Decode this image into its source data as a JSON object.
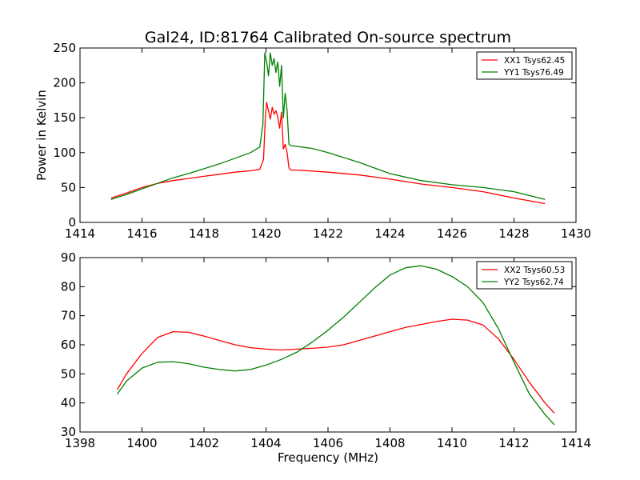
{
  "figure": {
    "title": "Gal24, ID:81764 Calibrated On-source spectrum",
    "xlabel": "Frequency (MHz)"
  },
  "chart_data": [
    {
      "type": "line",
      "title": "Gal24, ID:81764 Calibrated On-source spectrum",
      "xlabel": "",
      "ylabel": "Power in Kelvin",
      "xlim": [
        1414,
        1430
      ],
      "ylim": [
        0,
        250
      ],
      "xticks": [
        1414,
        1416,
        1418,
        1420,
        1422,
        1424,
        1426,
        1428,
        1430
      ],
      "yticks": [
        0,
        50,
        100,
        150,
        200,
        250
      ],
      "grid": false,
      "legend": "top-right",
      "series": [
        {
          "name": "XX1 Tsys62.45",
          "color": "#ff0000",
          "x": [
            1415.0,
            1415.5,
            1416.0,
            1416.5,
            1417.0,
            1417.5,
            1418.0,
            1418.5,
            1419.0,
            1419.5,
            1419.8,
            1419.92,
            1419.98,
            1420.02,
            1420.08,
            1420.14,
            1420.2,
            1420.26,
            1420.32,
            1420.38,
            1420.44,
            1420.5,
            1420.56,
            1420.62,
            1420.68,
            1420.74,
            1420.8,
            1421.0,
            1422.0,
            1423.0,
            1424.0,
            1425.0,
            1426.0,
            1427.0,
            1428.0,
            1429.0
          ],
          "y": [
            35,
            42,
            50,
            56,
            60,
            63,
            66,
            69,
            72,
            74,
            76,
            90,
            150,
            172,
            160,
            148,
            165,
            155,
            160,
            152,
            135,
            158,
            105,
            112,
            100,
            78,
            75,
            75,
            72,
            68,
            62,
            55,
            50,
            44,
            35,
            27
          ]
        },
        {
          "name": "YY1 Tsys76.49",
          "color": "#008000",
          "x": [
            1415.0,
            1415.5,
            1416.0,
            1416.5,
            1417.0,
            1417.5,
            1418.0,
            1418.5,
            1419.0,
            1419.5,
            1419.8,
            1419.9,
            1419.96,
            1420.02,
            1420.08,
            1420.14,
            1420.2,
            1420.26,
            1420.32,
            1420.38,
            1420.44,
            1420.5,
            1420.56,
            1420.62,
            1420.68,
            1420.74,
            1420.8,
            1421.0,
            1421.5,
            1422.0,
            1423.0,
            1424.0,
            1425.0,
            1426.0,
            1427.0,
            1428.0,
            1429.0
          ],
          "y": [
            33,
            40,
            48,
            56,
            64,
            70,
            77,
            84,
            92,
            100,
            108,
            140,
            243,
            230,
            210,
            243,
            225,
            235,
            215,
            230,
            195,
            225,
            150,
            185,
            160,
            112,
            110,
            109,
            106,
            100,
            86,
            70,
            60,
            54,
            50,
            44,
            33
          ]
        }
      ]
    },
    {
      "type": "line",
      "title": "",
      "xlabel": "Frequency (MHz)",
      "ylabel": "",
      "xlim": [
        1398,
        1414
      ],
      "ylim": [
        30,
        90
      ],
      "xticks": [
        1398,
        1400,
        1402,
        1404,
        1406,
        1408,
        1410,
        1412,
        1414
      ],
      "yticks": [
        30,
        40,
        50,
        60,
        70,
        80,
        90
      ],
      "grid": false,
      "legend": "top-right",
      "series": [
        {
          "name": "XX2 Tsys60.53",
          "color": "#ff0000",
          "x": [
            1399.2,
            1399.5,
            1400.0,
            1400.5,
            1401.0,
            1401.5,
            1402.0,
            1402.5,
            1403.0,
            1403.5,
            1404.0,
            1404.5,
            1405.0,
            1405.5,
            1406.0,
            1406.5,
            1407.0,
            1407.5,
            1408.0,
            1408.5,
            1409.0,
            1409.5,
            1410.0,
            1410.5,
            1411.0,
            1411.5,
            1412.0,
            1412.5,
            1413.0,
            1413.3
          ],
          "y": [
            44.5,
            50,
            57,
            62.5,
            64.5,
            64.3,
            63,
            61.5,
            60,
            59,
            58.5,
            58.2,
            58.5,
            58.8,
            59.2,
            60,
            61.5,
            63,
            64.5,
            66,
            67,
            68,
            68.8,
            68.5,
            66.8,
            62,
            55,
            47,
            40,
            36.5
          ]
        },
        {
          "name": "YY2 Tsys62.74",
          "color": "#008000",
          "x": [
            1399.2,
            1399.5,
            1400.0,
            1400.5,
            1401.0,
            1401.5,
            1402.0,
            1402.5,
            1403.0,
            1403.5,
            1404.0,
            1404.5,
            1405.0,
            1405.5,
            1406.0,
            1406.5,
            1407.0,
            1407.5,
            1408.0,
            1408.5,
            1409.0,
            1409.5,
            1410.0,
            1410.5,
            1411.0,
            1411.5,
            1412.0,
            1412.5,
            1413.0,
            1413.3
          ],
          "y": [
            43,
            47.5,
            52,
            54,
            54.2,
            53.5,
            52.3,
            51.5,
            51,
            51.5,
            53,
            55,
            57.5,
            61,
            65,
            69.5,
            74.5,
            79.5,
            84,
            86.5,
            87.2,
            86,
            83.5,
            80,
            74.5,
            65.5,
            54,
            43,
            36,
            32.5
          ]
        }
      ]
    }
  ]
}
